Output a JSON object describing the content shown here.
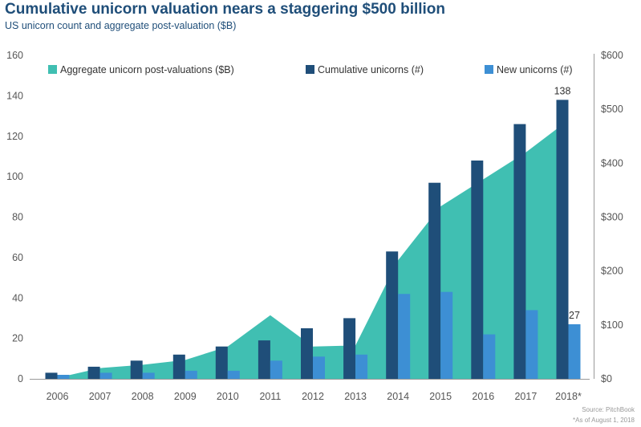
{
  "title": "Cumulative unicorn valuation nears a staggering $500 billion",
  "subtitle": "US unicorn count and aggregate post-valuation ($B)",
  "source": "Source: PitchBook",
  "footnote": "*As of August 1, 2018",
  "colors": {
    "area": "#40bfb2",
    "cumulative": "#1f4e79",
    "new": "#3d8fd4",
    "text": "#1f4e79",
    "axis": "#555555"
  },
  "chart_data": {
    "type": "bar",
    "categories": [
      "2006",
      "2007",
      "2008",
      "2009",
      "2010",
      "2011",
      "2012",
      "2013",
      "2014",
      "2015",
      "2016",
      "2017",
      "2018*"
    ],
    "series": [
      {
        "name": "Aggregate unicorn post-valuations ($B)",
        "type": "area",
        "axis": "right",
        "values": [
          2,
          20,
          26,
          35,
          60,
          118,
          60,
          62,
          220,
          320,
          370,
          420,
          480
        ]
      },
      {
        "name": "Cumulative unicorns (#)",
        "type": "bar",
        "axis": "left",
        "values": [
          3,
          6,
          9,
          12,
          16,
          19,
          25,
          30,
          63,
          97,
          108,
          126,
          138
        ]
      },
      {
        "name": "New unicorns (#)",
        "type": "bar",
        "axis": "left",
        "values": [
          2,
          3,
          3,
          4,
          4,
          9,
          11,
          12,
          42,
          43,
          22,
          34,
          27
        ]
      }
    ],
    "left_axis": {
      "ylim": [
        0,
        160
      ],
      "ticks": [
        "0",
        "20",
        "40",
        "60",
        "80",
        "100",
        "120",
        "140",
        "160"
      ]
    },
    "right_axis": {
      "ylim": [
        0,
        600
      ],
      "ticks": [
        "$0",
        "$100",
        "$200",
        "$300",
        "$400",
        "$500",
        "$600"
      ]
    },
    "data_labels": [
      {
        "series": "Cumulative unicorns (#)",
        "category": "2018*",
        "text": "138"
      },
      {
        "series": "New unicorns (#)",
        "category": "2018*",
        "text": "27"
      }
    ],
    "legend_position": "top",
    "grid": false
  }
}
